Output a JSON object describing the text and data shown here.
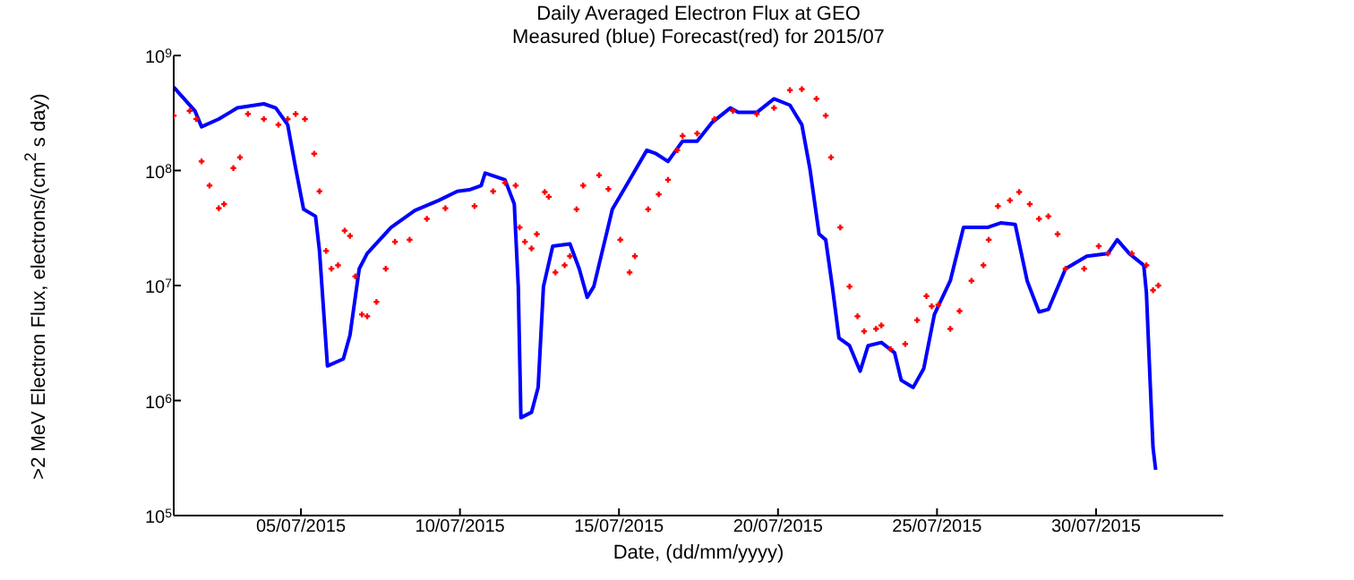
{
  "chart_data": {
    "type": "line",
    "title": "Daily Averaged Electron Flux at GEO",
    "subtitle": "Measured (blue) Forecast(red) for 2015/07",
    "xlabel": "Date, (dd/mm/yyyy)",
    "ylabel": ">2 MeV Electron Flux, electrons/(cm$^{2}$ s day)",
    "log": "y",
    "grid": false,
    "xlim": [
      "2015-07-01",
      "2015-08-03"
    ],
    "xticks": [
      {
        "value": "2015-07-05",
        "label": "05/07/2015"
      },
      {
        "value": "2015-07-10",
        "label": "10/07/2015"
      },
      {
        "value": "2015-07-15",
        "label": "15/07/2015"
      },
      {
        "value": "2015-07-20",
        "label": "20/07/2015"
      },
      {
        "value": "2015-07-25",
        "label": "25/07/2015"
      },
      {
        "value": "2015-07-30",
        "label": "30/07/2015"
      }
    ],
    "ylim": [
      100000,
      1000000000
    ],
    "yticks": [
      {
        "value": 100000,
        "label": "10$^{5}$"
      },
      {
        "value": 1000000,
        "label": "10$^{6}$"
      },
      {
        "value": 10000000,
        "label": "10$^{7}$"
      },
      {
        "value": 100000000,
        "label": "10$^{8}$"
      },
      {
        "value": 1000000000,
        "label": "10$^{9}$"
      }
    ],
    "series": [
      {
        "color": "#0000ff",
        "marker": "none",
        "line_style": "solid",
        "x": [
          "2015-07-01T00:00",
          "2015-07-01T16:00",
          "2015-07-01T21:00",
          "2015-07-02T10:00",
          "2015-07-03T00:00",
          "2015-07-03T20:00",
          "2015-07-04T05:00",
          "2015-07-04T14:00",
          "2015-07-04T20:00",
          "2015-07-05T02:00",
          "2015-07-05T11:00",
          "2015-07-05T14:00",
          "2015-07-05T20:00",
          "2015-07-06T08:00",
          "2015-07-06T13:00",
          "2015-07-06T20:00",
          "2015-07-07T02:00",
          "2015-07-07T20:00",
          "2015-07-08T14:00",
          "2015-07-09T08:00",
          "2015-07-09T22:00",
          "2015-07-10T07:00",
          "2015-07-10T16:00",
          "2015-07-10T19:00",
          "2015-07-11T10:00",
          "2015-07-11T17:00",
          "2015-07-11T20:00",
          "2015-07-11T22:00",
          "2015-07-12T06:00",
          "2015-07-12T11:00",
          "2015-07-12T15:00",
          "2015-07-12T22:00",
          "2015-07-13T11:00",
          "2015-07-13T18:00",
          "2015-07-14T00:00",
          "2015-07-14T05:00",
          "2015-07-14T19:00",
          "2015-07-15T08:00",
          "2015-07-15T21:00",
          "2015-07-16T04:00",
          "2015-07-16T13:00",
          "2015-07-17T00:00",
          "2015-07-17T11:00",
          "2015-07-17T22:00",
          "2015-07-18T12:00",
          "2015-07-18T18:00",
          "2015-07-19T08:00",
          "2015-07-19T21:00",
          "2015-07-20T09:00",
          "2015-07-20T18:00",
          "2015-07-21T00:00",
          "2015-07-21T07:00",
          "2015-07-21T12:00",
          "2015-07-21T17:00",
          "2015-07-21T22:00",
          "2015-07-22T06:00",
          "2015-07-22T14:00",
          "2015-07-22T20:00",
          "2015-07-23T06:00",
          "2015-07-23T16:00",
          "2015-07-23T21:00",
          "2015-07-24T06:00",
          "2015-07-24T14:00",
          "2015-07-24T22:00",
          "2015-07-25T10:00",
          "2015-07-25T20:00",
          "2015-07-26T14:00",
          "2015-07-27T00:00",
          "2015-07-27T11:00",
          "2015-07-27T20:00",
          "2015-07-28T05:00",
          "2015-07-28T12:00",
          "2015-07-29T01:00",
          "2015-07-29T17:00",
          "2015-07-30T09:00",
          "2015-07-30T16:00",
          "2015-07-31T01:00",
          "2015-07-31T12:00",
          "2015-07-31T14:00",
          "2015-07-31T17:00",
          "2015-07-31T19:00",
          "2015-07-31T21:00"
        ],
        "values": [
          530000000.0,
          330000000.0,
          240000000.0,
          280000000.0,
          350000000.0,
          380000000.0,
          350000000.0,
          250000000.0,
          105000000.0,
          46000000.0,
          40000000.0,
          20000000.0,
          2000000.0,
          2300000.0,
          3700000.0,
          14000000.0,
          19000000.0,
          32000000.0,
          45000000.0,
          55000000.0,
          66000000.0,
          68000000.0,
          74000000.0,
          95000000.0,
          83000000.0,
          51000000.0,
          9800000.0,
          710000.0,
          790000.0,
          1300000.0,
          9800000.0,
          22000000.0,
          23000000.0,
          14000000.0,
          7900000.0,
          9800000.0,
          46000000.0,
          83000000.0,
          150000000.0,
          140000000.0,
          120000000.0,
          180000000.0,
          180000000.0,
          260000000.0,
          350000000.0,
          320000000.0,
          320000000.0,
          420000000.0,
          370000000.0,
          250000000.0,
          105000000.0,
          28000000.0,
          25000000.0,
          9800000.0,
          3500000.0,
          3000000.0,
          1800000.0,
          3000000.0,
          3200000.0,
          2600000.0,
          1500000.0,
          1300000.0,
          1900000.0,
          5600000.0,
          11000000.0,
          32000000.0,
          32000000.0,
          35000000.0,
          34000000.0,
          11000000.0,
          5900000.0,
          6200000.0,
          14000000.0,
          18000000.0,
          19000000.0,
          25000000.0,
          19000000.0,
          15000000.0,
          8700000.0,
          1300000.0,
          390000.0,
          250000.0
        ]
      },
      {
        "type": "scatter",
        "color": "#ff0000",
        "marker": "cross",
        "x": [
          "2015-07-01T00:00",
          "2015-07-01T12:00",
          "2015-07-01T17:00",
          "2015-07-01T21:00",
          "2015-07-02T03:00",
          "2015-07-02T10:00",
          "2015-07-02T14:00",
          "2015-07-02T21:00",
          "2015-07-03T02:00",
          "2015-07-03T08:00",
          "2015-07-03T20:00",
          "2015-07-04T07:00",
          "2015-07-04T14:00",
          "2015-07-04T20:00",
          "2015-07-05T03:00",
          "2015-07-05T10:00",
          "2015-07-05T14:00",
          "2015-07-05T19:00",
          "2015-07-05T23:00",
          "2015-07-06T04:00",
          "2015-07-06T09:00",
          "2015-07-06T13:00",
          "2015-07-06T17:00",
          "2015-07-06T22:00",
          "2015-07-07T02:00",
          "2015-07-07T09:00",
          "2015-07-07T16:00",
          "2015-07-07T23:00",
          "2015-07-08T10:00",
          "2015-07-08T23:00",
          "2015-07-09T13:00",
          "2015-07-10T11:00",
          "2015-07-11T01:00",
          "2015-07-11T10:00",
          "2015-07-11T18:00",
          "2015-07-11T21:00",
          "2015-07-12T01:00",
          "2015-07-12T06:00",
          "2015-07-12T10:00",
          "2015-07-12T16:00",
          "2015-07-12T19:00",
          "2015-07-13T00:00",
          "2015-07-13T07:00",
          "2015-07-13T11:00",
          "2015-07-13T16:00",
          "2015-07-13T21:00",
          "2015-07-14T09:00",
          "2015-07-14T16:00",
          "2015-07-15T01:00",
          "2015-07-15T08:00",
          "2015-07-15T12:00",
          "2015-07-15T22:00",
          "2015-07-16T06:00",
          "2015-07-16T13:00",
          "2015-07-16T20:00",
          "2015-07-17T00:00",
          "2015-07-17T11:00",
          "2015-07-18T00:00",
          "2015-07-18T14:00",
          "2015-07-19T08:00",
          "2015-07-19T21:00",
          "2015-07-20T09:00",
          "2015-07-20T18:00",
          "2015-07-21T05:00",
          "2015-07-21T12:00",
          "2015-07-21T16:00",
          "2015-07-21T23:00",
          "2015-07-22T06:00",
          "2015-07-22T12:00",
          "2015-07-22T17:00",
          "2015-07-23T02:00",
          "2015-07-23T06:00",
          "2015-07-23T13:00",
          "2015-07-24T00:00",
          "2015-07-24T09:00",
          "2015-07-24T16:00",
          "2015-07-24T20:00",
          "2015-07-25T01:00",
          "2015-07-25T10:00",
          "2015-07-25T17:00",
          "2015-07-26T02:00",
          "2015-07-26T11:00",
          "2015-07-26T15:00",
          "2015-07-26T22:00",
          "2015-07-27T07:00",
          "2015-07-27T14:00",
          "2015-07-27T22:00",
          "2015-07-28T05:00",
          "2015-07-28T12:00",
          "2015-07-28T19:00",
          "2015-07-29T01:00",
          "2015-07-29T15:00",
          "2015-07-30T02:00",
          "2015-07-30T09:00",
          "2015-07-31T03:00",
          "2015-07-31T14:00",
          "2015-07-31T19:00",
          "2015-07-31T23:00"
        ],
        "values": [
          300000000.0,
          330000000.0,
          280000000.0,
          120000000.0,
          74000000.0,
          47000000.0,
          51000000.0,
          105000000.0,
          130000000.0,
          310000000.0,
          280000000.0,
          250000000.0,
          280000000.0,
          310000000.0,
          280000000.0,
          140000000.0,
          66000000.0,
          20000000.0,
          14000000.0,
          15000000.0,
          30000000.0,
          27000000.0,
          12000000.0,
          5600000.0,
          5400000.0,
          7200000.0,
          14000000.0,
          24000000.0,
          25000000.0,
          38000000.0,
          47000000.0,
          49000000.0,
          66000000.0,
          78000000.0,
          74000000.0,
          32000000.0,
          24000000.0,
          21000000.0,
          28000000.0,
          65000000.0,
          59000000.0,
          13000000.0,
          15000000.0,
          18000000.0,
          46000000.0,
          74000000.0,
          91000000.0,
          69000000.0,
          25000000.0,
          13000000.0,
          18000000.0,
          46000000.0,
          62000000.0,
          83000000.0,
          150000000.0,
          200000000.0,
          210000000.0,
          280000000.0,
          330000000.0,
          310000000.0,
          350000000.0,
          500000000.0,
          510000000.0,
          420000000.0,
          300000000.0,
          130000000.0,
          32000000.0,
          9800000.0,
          5400000.0,
          4000000.0,
          4200000.0,
          4500000.0,
          2800000.0,
          3100000.0,
          5000000.0,
          8100000.0,
          6600000.0,
          6800000.0,
          4200000.0,
          6000000.0,
          11000000.0,
          15000000.0,
          25000000.0,
          49000000.0,
          55000000.0,
          65000000.0,
          51000000.0,
          38000000.0,
          40000000.0,
          28000000.0,
          14000000.0,
          14000000.0,
          22000000.0,
          19000000.0,
          19000000.0,
          15000000.0,
          9100000.0,
          10000000.0
        ]
      }
    ]
  }
}
